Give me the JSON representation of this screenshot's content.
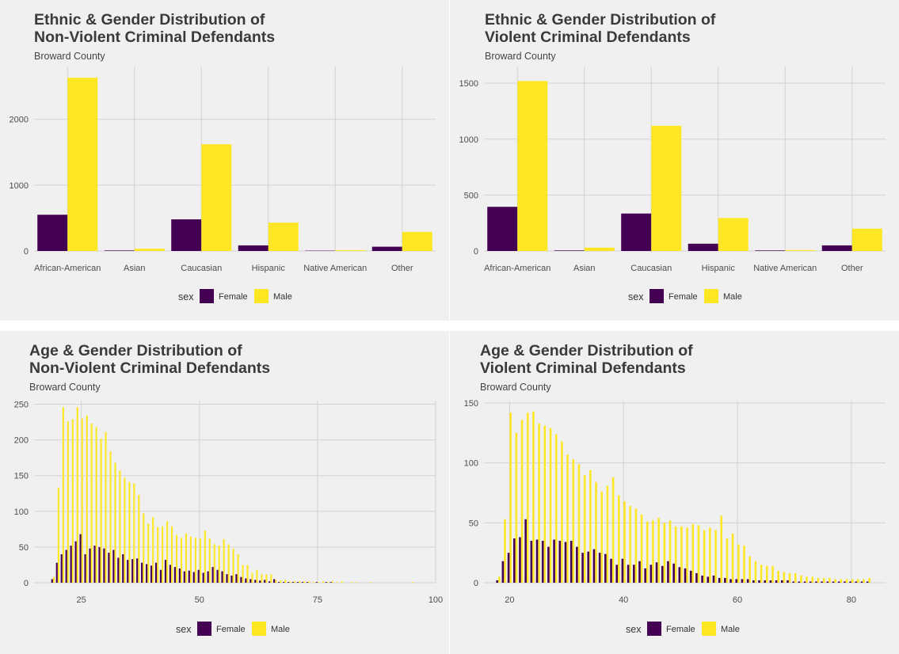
{
  "colors": {
    "female": "#440154",
    "male": "#fde725",
    "panel_bg": "#f0f0f0",
    "grid": "#d2d2d2"
  },
  "chart_data": [
    {
      "id": "ethnic-nonviolent",
      "type": "bar",
      "title_line1": "Ethnic & Gender Distribution of",
      "title_line2": "Non-Violent Criminal Defendants",
      "subtitle": "Broward County",
      "legend": {
        "title": "sex",
        "labels": [
          "Female",
          "Male"
        ]
      },
      "categories": [
        "African-American",
        "Asian",
        "Caucasian",
        "Hispanic",
        "Native American",
        "Other"
      ],
      "series": [
        {
          "name": "Female",
          "values": [
            550,
            8,
            480,
            85,
            5,
            65
          ]
        },
        {
          "name": "Male",
          "values": [
            2630,
            35,
            1620,
            430,
            12,
            290
          ]
        }
      ],
      "ylim": [
        0,
        2800
      ],
      "yticks": [
        0,
        1000,
        2000
      ]
    },
    {
      "id": "ethnic-violent",
      "type": "bar",
      "title_line1": "Ethnic & Gender Distribution of",
      "title_line2": "Violent Criminal Defendants",
      "subtitle": "Broward County",
      "legend": {
        "title": "sex",
        "labels": [
          "Female",
          "Male"
        ]
      },
      "categories": [
        "African-American",
        "Asian",
        "Caucasian",
        "Hispanic",
        "Native American",
        "Other"
      ],
      "series": [
        {
          "name": "Female",
          "values": [
            395,
            5,
            335,
            65,
            5,
            50
          ]
        },
        {
          "name": "Male",
          "values": [
            1520,
            30,
            1120,
            295,
            8,
            200
          ]
        }
      ],
      "ylim": [
        0,
        1650
      ],
      "yticks": [
        0,
        500,
        1000,
        1500
      ]
    },
    {
      "id": "age-nonviolent",
      "type": "bar",
      "title_line1": "Age & Gender Distribution of",
      "title_line2": "Non-Violent Criminal Defendants",
      "subtitle": "Broward County",
      "legend": {
        "title": "sex",
        "labels": [
          "Female",
          "Male"
        ]
      },
      "x_start": 19,
      "xlim": [
        15,
        100
      ],
      "xticks": [
        25,
        50,
        75,
        100
      ],
      "ylim": [
        0,
        255
      ],
      "yticks": [
        0,
        50,
        100,
        150,
        200,
        250
      ],
      "series": [
        {
          "name": "Female",
          "values": [
            5,
            28,
            40,
            46,
            52,
            58,
            68,
            40,
            48,
            52,
            50,
            48,
            42,
            46,
            35,
            40,
            32,
            33,
            34,
            28,
            26,
            24,
            28,
            18,
            32,
            25,
            22,
            20,
            16,
            17,
            15,
            18,
            14,
            16,
            22,
            18,
            16,
            12,
            10,
            12,
            8,
            6,
            5,
            4,
            3,
            4,
            2,
            5,
            1,
            1,
            1,
            1,
            1,
            1,
            1,
            0,
            1,
            0,
            1,
            1,
            0,
            0,
            0,
            0,
            0,
            0,
            0,
            0,
            0,
            0,
            0,
            0,
            0,
            0,
            0,
            0,
            0,
            0
          ]
        },
        {
          "name": "Male",
          "values": [
            8,
            133,
            246,
            226,
            229,
            246,
            230,
            234,
            223,
            218,
            202,
            211,
            184,
            168,
            157,
            147,
            141,
            139,
            123,
            97,
            83,
            92,
            78,
            79,
            86,
            79,
            67,
            63,
            69,
            65,
            63,
            62,
            73,
            62,
            54,
            52,
            61,
            54,
            48,
            40,
            25,
            25,
            14,
            18,
            12,
            12,
            12,
            4,
            3,
            4,
            2,
            2,
            2,
            2,
            2,
            1,
            1,
            2,
            1,
            2,
            1,
            2,
            0,
            1,
            1,
            0,
            0,
            1,
            0,
            0,
            0,
            0,
            0,
            0,
            0,
            0,
            1,
            0
          ]
        }
      ]
    },
    {
      "id": "age-violent",
      "type": "bar",
      "title_line1": "Age & Gender Distribution of",
      "title_line2": "Violent Criminal Defendants",
      "subtitle": "Broward County",
      "legend": {
        "title": "sex",
        "labels": [
          "Female",
          "Male"
        ]
      },
      "x_start": 18,
      "xlim": [
        15.5,
        86
      ],
      "xticks": [
        20,
        40,
        60,
        80
      ],
      "ylim": [
        0,
        152
      ],
      "yticks": [
        0,
        50,
        100,
        150
      ],
      "series": [
        {
          "name": "Female",
          "values": [
            2,
            18,
            25,
            37,
            38,
            53,
            35,
            36,
            35,
            30,
            36,
            35,
            34,
            35,
            30,
            25,
            26,
            28,
            25,
            24,
            20,
            15,
            20,
            15,
            15,
            18,
            12,
            15,
            17,
            14,
            18,
            16,
            13,
            12,
            10,
            8,
            6,
            5,
            6,
            4,
            4,
            3,
            3,
            3,
            3,
            2,
            2,
            2,
            2,
            2,
            2,
            2,
            1,
            1,
            1,
            1,
            1,
            1,
            1,
            1,
            1,
            1,
            1,
            1,
            1,
            1
          ]
        },
        {
          "name": "Male",
          "values": [
            5,
            53,
            142,
            125,
            136,
            142,
            143,
            133,
            131,
            129,
            124,
            118,
            107,
            103,
            99,
            90,
            94,
            84,
            76,
            81,
            88,
            73,
            68,
            64,
            62,
            57,
            51,
            52,
            54,
            50,
            52,
            47,
            47,
            46,
            49,
            48,
            44,
            46,
            44,
            56,
            37,
            41,
            32,
            31,
            22,
            18,
            15,
            14,
            14,
            10,
            9,
            8,
            8,
            6,
            5,
            5,
            4,
            4,
            4,
            3,
            3,
            3,
            3,
            3,
            3,
            4
          ]
        }
      ]
    }
  ]
}
